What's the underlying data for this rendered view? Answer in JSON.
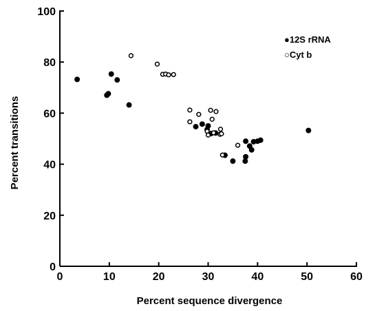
{
  "chart_data": {
    "type": "scatter",
    "title": "",
    "xlabel": "Percent sequence divergence",
    "ylabel": "Percent transitions",
    "xlim": [
      0,
      60
    ],
    "ylim": [
      0,
      100
    ],
    "xticks": [
      0,
      10,
      20,
      30,
      40,
      50,
      60
    ],
    "yticks": [
      0,
      20,
      40,
      60,
      80,
      100
    ],
    "grid": false,
    "legend": "top-right",
    "series": [
      {
        "name": "12S rRNA",
        "marker": "filled-circle",
        "color": "#000000",
        "legend_label": "●12S rRNA",
        "points": [
          [
            3.5,
            73.2
          ],
          [
            9.5,
            67
          ],
          [
            9.8,
            67.6
          ],
          [
            10.4,
            75.3
          ],
          [
            11.6,
            73
          ],
          [
            14,
            63.2
          ],
          [
            27.5,
            54.7
          ],
          [
            28.8,
            55.7
          ],
          [
            29.8,
            53.6
          ],
          [
            30,
            55
          ],
          [
            30.6,
            52
          ],
          [
            31.5,
            52.2
          ],
          [
            33.4,
            43.5
          ],
          [
            35,
            41.2
          ],
          [
            37.5,
            41.2
          ],
          [
            37.6,
            42.9
          ],
          [
            37.6,
            49
          ],
          [
            38.4,
            47.1
          ],
          [
            38.8,
            45.6
          ],
          [
            39.2,
            48.8
          ],
          [
            40,
            49
          ],
          [
            40.6,
            49.4
          ],
          [
            50.3,
            53.2
          ]
        ]
      },
      {
        "name": "Cyt b",
        "marker": "open-circle",
        "color": "#000000",
        "legend_label": "○Cyt b",
        "points": [
          [
            14.4,
            82.5
          ],
          [
            19.7,
            79.2
          ],
          [
            20.8,
            75.2
          ],
          [
            21.4,
            75.3
          ],
          [
            22,
            75
          ],
          [
            23,
            75.1
          ],
          [
            26.3,
            61.2
          ],
          [
            26.3,
            56.6
          ],
          [
            28.1,
            59.5
          ],
          [
            29.8,
            52.9
          ],
          [
            30,
            51.4
          ],
          [
            30.5,
            61.1
          ],
          [
            30.8,
            57.6
          ],
          [
            31.1,
            52.3
          ],
          [
            31.6,
            60.6
          ],
          [
            32.4,
            51.7
          ],
          [
            32.5,
            53.7
          ],
          [
            32.7,
            51.9
          ],
          [
            32.9,
            43.6
          ],
          [
            36,
            47.4
          ]
        ]
      }
    ]
  }
}
